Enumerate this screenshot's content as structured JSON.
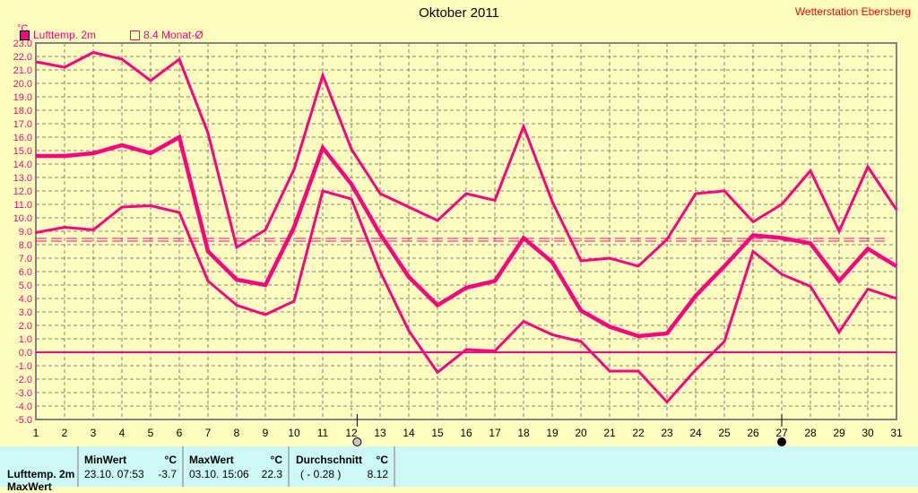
{
  "header": {
    "title": "Oktober 2011",
    "station": "Wetterstation Ebersberg"
  },
  "legend": {
    "series_label": "Lufttemp. 2m",
    "series_color": "#ff0080",
    "avg_label": "8.4 Monat-Ø"
  },
  "chart_data": {
    "type": "line",
    "title": "Oktober 2011",
    "ylabel": "°C",
    "xlim": [
      1,
      31
    ],
    "ylim": [
      -5,
      23
    ],
    "x": [
      1,
      2,
      3,
      4,
      5,
      6,
      7,
      8,
      9,
      10,
      11,
      12,
      13,
      14,
      15,
      16,
      17,
      18,
      19,
      20,
      21,
      22,
      23,
      24,
      25,
      26,
      27,
      28,
      29,
      30,
      31
    ],
    "yticks": [
      "23.0",
      "22.0",
      "21.0",
      "20.0",
      "19.0",
      "18.0",
      "17.0",
      "16.0",
      "15.0",
      "14.0",
      "13.0",
      "12.0",
      "11.0",
      "10.0",
      "9.0",
      "8.0",
      "7.0",
      "6.0",
      "5.0",
      "4.0",
      "3.0",
      "2.0",
      "1.0",
      "0.0",
      "-1.0",
      "-2.0",
      "-3.0",
      "-4.0",
      "-5.0"
    ],
    "grid": true,
    "series": [
      {
        "values": [
          21.6,
          21.2,
          22.3,
          21.8,
          20.2,
          21.8,
          16.3,
          7.8,
          9.1,
          13.6,
          20.6,
          15.1,
          11.8,
          10.8,
          9.8,
          11.8,
          11.3,
          16.8,
          11.2,
          6.8,
          7.0,
          6.4,
          8.4,
          11.8,
          12.0,
          9.7,
          11.0,
          13.5,
          9.0,
          13.8,
          10.6
        ]
      },
      {
        "name": "Lufttemp. 2m",
        "values": [
          14.6,
          14.6,
          14.8,
          15.4,
          14.8,
          16.0,
          7.5,
          5.4,
          5.0,
          9.3,
          15.2,
          12.5,
          8.8,
          5.6,
          3.5,
          4.8,
          5.3,
          8.5,
          6.7,
          3.1,
          1.9,
          1.2,
          1.4,
          4.2,
          6.4,
          8.7,
          8.5,
          8.1,
          5.3,
          7.7,
          6.4
        ]
      },
      {
        "values": [
          8.9,
          9.3,
          9.1,
          10.8,
          10.9,
          10.4,
          5.3,
          3.5,
          2.8,
          3.8,
          12.0,
          11.4,
          6.0,
          1.6,
          -1.5,
          0.2,
          0.1,
          2.3,
          1.3,
          0.8,
          -1.4,
          -1.4,
          -3.7,
          -1.3,
          0.8,
          7.5,
          5.8,
          4.9,
          1.5,
          4.7,
          4.0
        ]
      }
    ],
    "reference_line": {
      "name": "8.4 Monat-Ø",
      "value": 8.4
    },
    "moon_phases": [
      {
        "day": 12.2,
        "phase": "full-moon-icon"
      },
      {
        "day": 27,
        "phase": "new-moon-icon"
      }
    ]
  },
  "stats": {
    "row_label": "Lufttemp. 2m",
    "row2_label": "MaxWert",
    "min": {
      "label": "MinWert",
      "unit": "°C",
      "time": "23.10.  07:53",
      "value": "-3.7"
    },
    "max": {
      "label": "MaxWert",
      "unit": "°C",
      "time": "03.10.  15:06",
      "value": "22.3"
    },
    "avg": {
      "label": "Durchschnitt",
      "unit": "°C",
      "dev": "( - 0.28 )",
      "value": "8.12"
    }
  }
}
